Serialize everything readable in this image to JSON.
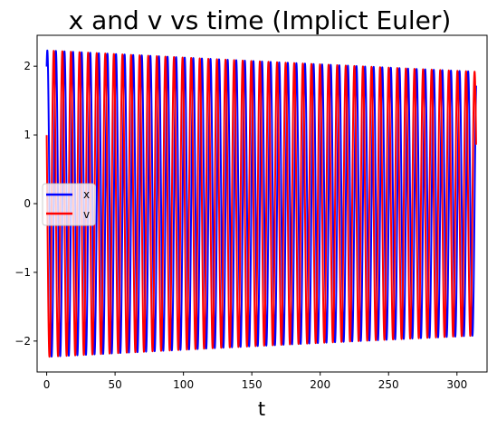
{
  "chart_data": {
    "type": "line",
    "title": "x and v vs time (Implict Euler)",
    "xlabel": "t",
    "ylabel": "",
    "xlim": [
      -7,
      322
    ],
    "ylim": [
      -2.45,
      2.45
    ],
    "x_ticks": [
      0,
      50,
      100,
      150,
      200,
      250,
      300
    ],
    "y_ticks": [
      -2,
      -1,
      0,
      1,
      2
    ],
    "x_tick_labels": [
      "0",
      "50",
      "100",
      "150",
      "200",
      "250",
      "300"
    ],
    "y_tick_labels": [
      "−2",
      "−1",
      "0",
      "1",
      "2"
    ],
    "grid": false,
    "legend_position": "center-left",
    "t_range": [
      0,
      314
    ],
    "approx_period": 6.28,
    "series": [
      {
        "name": "x",
        "color": "#0000ff",
        "start_value": 2.0,
        "peak_amplitude_start": 2.23,
        "peak_amplitude_end": 1.92,
        "end_value": 0.85
      },
      {
        "name": "v",
        "color": "#ff0000",
        "start_value": 1.0,
        "peak_amplitude_start": 2.23,
        "peak_amplitude_end": 1.92,
        "end_value": 1.73
      }
    ]
  }
}
